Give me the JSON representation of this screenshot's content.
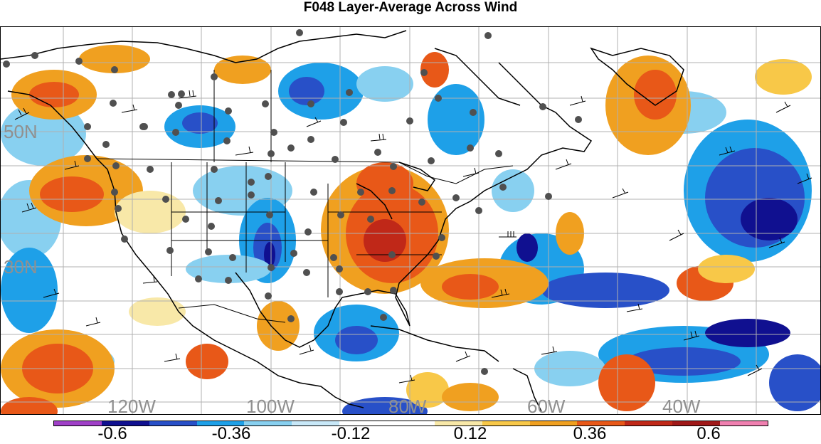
{
  "title": "F048 Layer-Average Across Wind",
  "lat_labels": [
    "50N",
    "30N"
  ],
  "lon_labels": [
    "120W",
    "100W",
    "80W",
    "60W",
    "40W"
  ],
  "colorbar": {
    "labels": [
      "-0.6",
      "-0.36",
      "-0.12",
      "0.12",
      "0.36",
      "0.6"
    ],
    "colors": [
      "#a040c8",
      "#101090",
      "#2850c8",
      "#1ea0e8",
      "#88d0f0",
      "#c8e8f8",
      "#ffffff",
      "#ffffff",
      "#f8e8a8",
      "#f8c848",
      "#f0a020",
      "#e85818",
      "#c02818",
      "#a01818",
      "#f080b0"
    ]
  },
  "map": {
    "field": "Layer-average across-wind component",
    "station_marker_color": "#505050",
    "coastline_color": "#000000",
    "grid_color": "#b0b0b0"
  }
}
